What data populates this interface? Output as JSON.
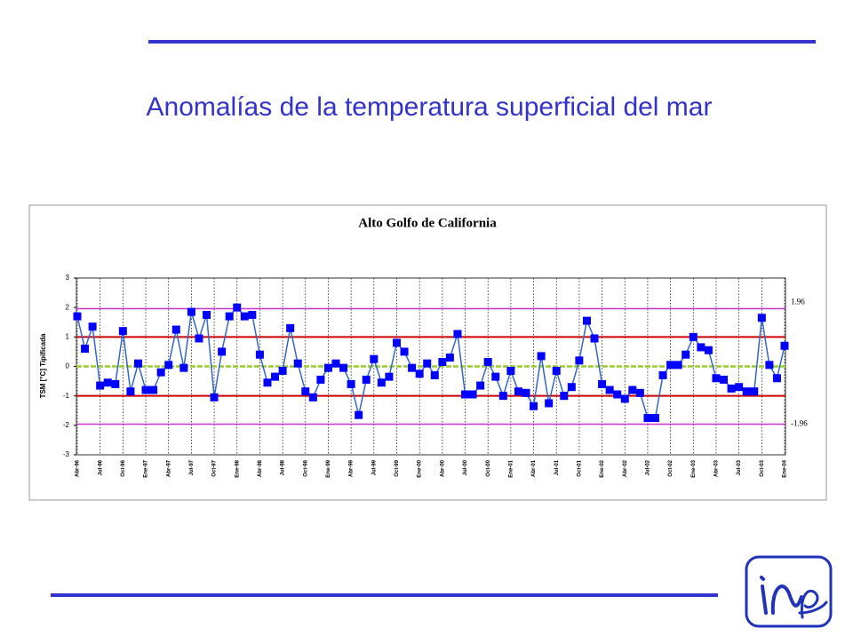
{
  "slide": {
    "title": "Anomalías de la temperatura superficial del mar"
  },
  "chart_data": {
    "type": "line",
    "title": "Alto Golfo de California",
    "y_label": "TSM [°C] Tipificada",
    "categories": [
      "Abr-96",
      null,
      null,
      "Jul-96",
      null,
      null,
      "Oct-96",
      null,
      null,
      "Ene-97",
      null,
      null,
      "Abr-97",
      null,
      null,
      "Jul-97",
      null,
      null,
      "Oct-97",
      null,
      null,
      "Ene-98",
      null,
      null,
      "Abr-98",
      null,
      null,
      "Jul-98",
      null,
      null,
      "Oct-98",
      null,
      null,
      "Ene-99",
      null,
      null,
      "Abr-99",
      null,
      null,
      "Jul-99",
      null,
      null,
      "Oct-99",
      null,
      null,
      "Ene-00",
      null,
      null,
      "Abr-00",
      null,
      null,
      "Jul-00",
      null,
      null,
      "Oct-00",
      null,
      null,
      "Ene-01",
      null,
      null,
      "Abr-01",
      null,
      null,
      "Jul-01",
      null,
      null,
      "Oct-01",
      null,
      null,
      "Ene-02",
      null,
      null,
      "Abr-02",
      null,
      null,
      "Jul-02",
      null,
      null,
      "Oct-02",
      null,
      null,
      "Ene-03",
      null,
      null,
      "Abr-03",
      null,
      null,
      "Jul-03",
      null,
      null,
      "Oct-03",
      null,
      null,
      "Ene-04"
    ],
    "series": [
      {
        "name": "TSM",
        "color": "#3366cc",
        "marker_color": "#0000ff",
        "values": [
          1.7,
          0.6,
          1.35,
          -0.65,
          -0.55,
          -0.6,
          1.2,
          -0.85,
          0.1,
          -0.8,
          -0.8,
          -0.2,
          0.05,
          1.25,
          -0.05,
          1.85,
          0.95,
          1.75,
          -1.05,
          0.5,
          1.7,
          2.0,
          1.7,
          1.75,
          0.4,
          -0.55,
          -0.35,
          -0.15,
          1.3,
          0.1,
          -0.85,
          -1.05,
          -0.45,
          -0.05,
          0.1,
          -0.05,
          -0.6,
          -1.65,
          -0.45,
          0.25,
          -0.55,
          -0.35,
          0.8,
          0.5,
          -0.05,
          -0.25,
          0.1,
          -0.3,
          0.15,
          0.3,
          1.1,
          -0.95,
          -0.95,
          -0.65,
          0.15,
          -0.35,
          -1.0,
          -0.15,
          -0.85,
          -0.9,
          -1.35,
          0.35,
          -1.25,
          -0.15,
          -1.0,
          -0.7,
          0.2,
          1.55,
          0.95,
          -0.6,
          -0.8,
          -0.95,
          -1.1,
          -0.8,
          -0.9,
          -1.75,
          -1.75,
          -0.3,
          0.05,
          0.05,
          0.4,
          1.0,
          0.65,
          0.55,
          -0.4,
          -0.45,
          -0.75,
          -0.7,
          -0.85,
          -0.85,
          1.65,
          0.05,
          -0.4,
          0.7
        ]
      }
    ],
    "ylim": [
      -3,
      3
    ],
    "yticks": [
      -3,
      -2,
      -1,
      0,
      1,
      2,
      3
    ],
    "xgrid": true,
    "thresholds": {
      "values": [
        1.96,
        -1.96
      ],
      "color": "#cc33cc"
    },
    "control_lines": {
      "values": [
        1,
        -1
      ],
      "color": "#cc0000"
    },
    "zero_line": {
      "value": 0,
      "color": "#99cc33"
    }
  }
}
